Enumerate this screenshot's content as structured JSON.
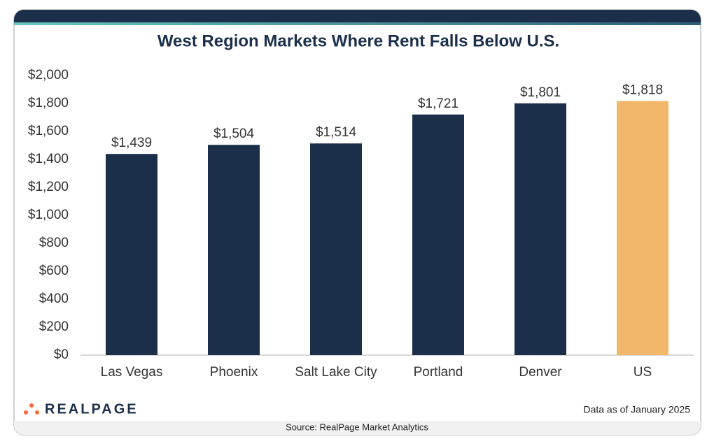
{
  "chart_data": {
    "type": "bar",
    "title": "West Region Markets Where Rent Falls Below U.S.",
    "categories": [
      "Las Vegas",
      "Phoenix",
      "Salt Lake City",
      "Portland",
      "Denver",
      "US"
    ],
    "values": [
      1439,
      1504,
      1514,
      1721,
      1801,
      1818
    ],
    "value_labels": [
      "$1,439",
      "$1,504",
      "$1,514",
      "$1,721",
      "$1,801",
      "$1,818"
    ],
    "colors": [
      "#1c2f4a",
      "#1c2f4a",
      "#1c2f4a",
      "#1c2f4a",
      "#1c2f4a",
      "#f2b76a"
    ],
    "ylim": [
      0,
      2000
    ],
    "yticks": [
      {
        "value": 0,
        "label": "$0"
      },
      {
        "value": 200,
        "label": "$200"
      },
      {
        "value": 400,
        "label": "$400"
      },
      {
        "value": 600,
        "label": "$600"
      },
      {
        "value": 800,
        "label": "$800"
      },
      {
        "value": 1000,
        "label": "$1,000"
      },
      {
        "value": 1200,
        "label": "$1,200"
      },
      {
        "value": 1400,
        "label": "$1,400"
      },
      {
        "value": 1600,
        "label": "$1,600"
      },
      {
        "value": 1800,
        "label": "$1,800"
      },
      {
        "value": 2000,
        "label": "$2,000"
      }
    ],
    "grid": false
  },
  "footer": {
    "logo": "REALPAGE",
    "note": "Data as of January 2025",
    "source": "Source: RealPage Market Analytics"
  }
}
